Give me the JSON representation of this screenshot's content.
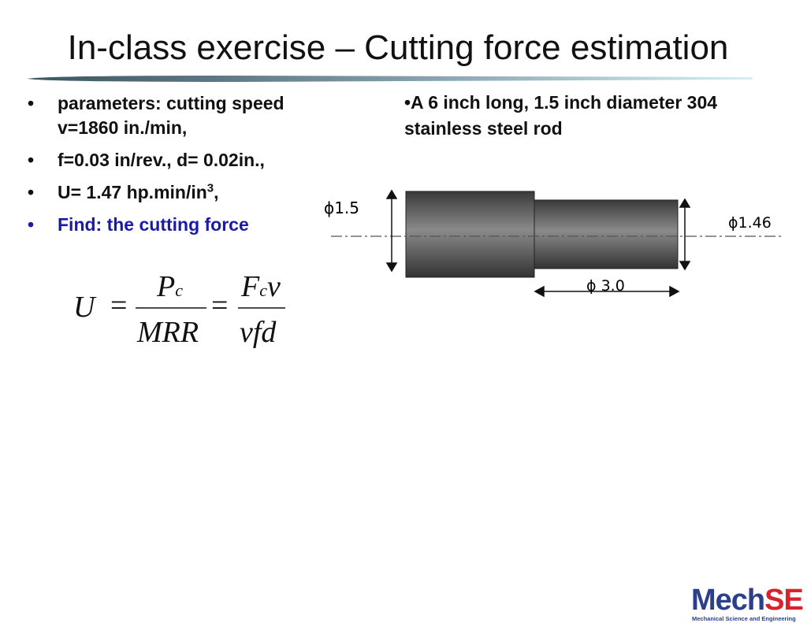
{
  "title": "In-class exercise – Cutting force estimation",
  "bullets": [
    "parameters: cutting speed v=1860 in./min,",
    "f=0.03 in/rev., d= 0.02in.,",
    {
      "text": "U= 1.47 hp.min/in",
      "sup": "3",
      "tail": ","
    },
    "Find: the cutting force"
  ],
  "description": "•A 6 inch long, 1.5 inch diameter 304 stainless steel rod",
  "diagram": {
    "left_dim": "ϕ1.5",
    "right_dim": "ϕ1.46",
    "length_dim": "ϕ 3.0"
  },
  "formula": {
    "lhs": "U",
    "eq1": "=",
    "num1": {
      "base": "P",
      "sub": "c"
    },
    "den1": "MRR",
    "eq2": "=",
    "num2": {
      "base": "F",
      "sub": "c",
      "tail": "v"
    },
    "den2": "vfd"
  },
  "logo": {
    "mech": "Mech",
    "se": "SE",
    "caption": "Mechanical Science and Engineering"
  }
}
